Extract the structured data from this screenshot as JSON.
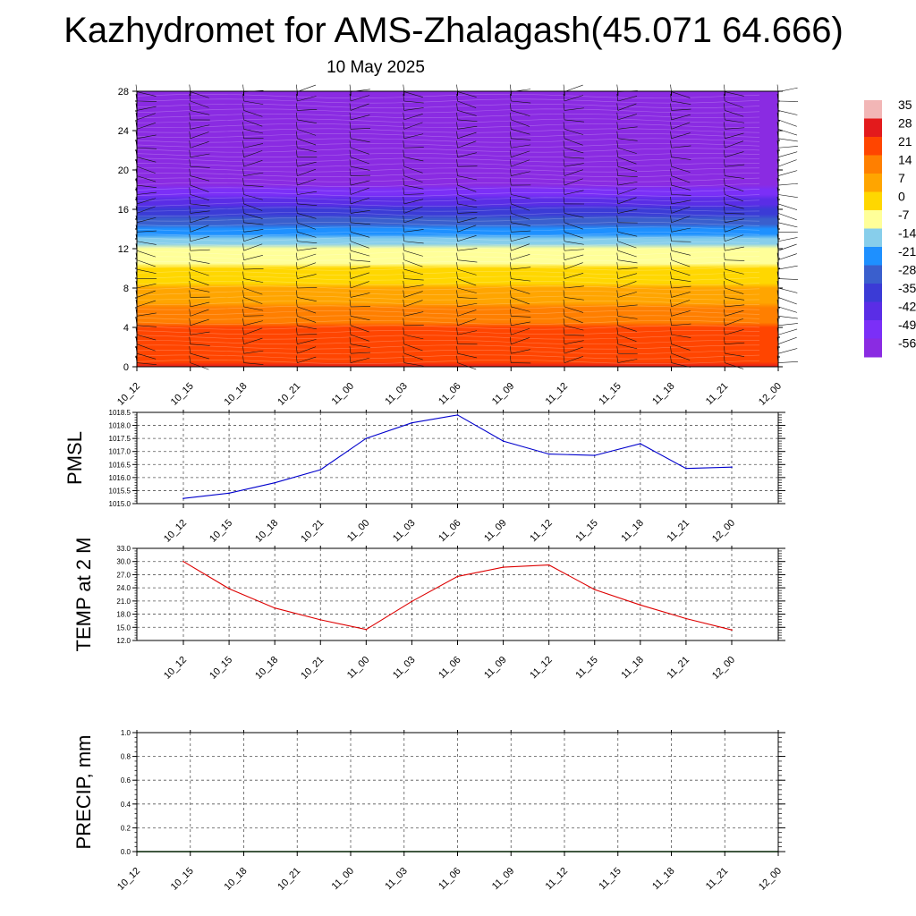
{
  "header": {
    "title": "Kazhydromet for AMS-Zhalagash(45.071 64.666)",
    "subtitle": "10 May 2025"
  },
  "chart_data": [
    {
      "type": "heatmap",
      "name": "temperature-cross-section",
      "ylim": [
        0,
        28
      ],
      "yticks": [
        "0",
        "4",
        "8",
        "12",
        "16",
        "20",
        "24",
        "28"
      ],
      "x_labels": [
        "10_12",
        "10_15",
        "10_18",
        "10_21",
        "11_00",
        "11_03",
        "11_06",
        "11_09",
        "11_12",
        "11_15",
        "11_18",
        "11_21",
        "12_00"
      ],
      "colorbar": {
        "labels": [
          "35",
          "28",
          "21",
          "14",
          "7",
          "0",
          "-7",
          "-14",
          "-21",
          "-28",
          "-35",
          "-42",
          "-49",
          "-56"
        ],
        "colors": [
          "#f2b6b6",
          "#e31a1c",
          "#ff4500",
          "#ff7f00",
          "#ffa500",
          "#ffd700",
          "#ffff99",
          "#87ceeb",
          "#1e90ff",
          "#3a5fcd",
          "#3b3bd6",
          "#5a2de6",
          "#7b2ff7",
          "#8a2be2"
        ]
      },
      "temperature_profile": [
        {
          "level": 0,
          "value": 28
        },
        {
          "level": 4,
          "value": 21
        },
        {
          "level": 6,
          "value": 14
        },
        {
          "level": 9,
          "value": 5
        },
        {
          "level": 12,
          "value": -7
        },
        {
          "level": 13,
          "value": -14
        },
        {
          "level": 15,
          "value": -28
        },
        {
          "level": 18,
          "value": -49
        },
        {
          "level": 22,
          "value": -56
        },
        {
          "level": 28,
          "value": -60
        }
      ],
      "wind_barbs_shown": true
    },
    {
      "type": "line",
      "name": "pmsl",
      "ylabel": "PMSL",
      "ylim": [
        1015.0,
        1018.5
      ],
      "yticks": [
        "1015.0",
        "1015.5",
        "1016.0",
        "1016.5",
        "1017.0",
        "1017.5",
        "1018.0",
        "1018.5"
      ],
      "categories": [
        "10_12",
        "10_15",
        "10_18",
        "10_21",
        "11_00",
        "11_03",
        "11_06",
        "11_09",
        "11_12",
        "11_15",
        "11_18",
        "11_21",
        "12_00"
      ],
      "values": [
        1015.2,
        1015.4,
        1015.8,
        1016.3,
        1017.5,
        1018.1,
        1018.4,
        1017.4,
        1016.9,
        1016.85,
        1017.3,
        1016.35,
        1016.4
      ],
      "color": "#0000cc",
      "grid": true
    },
    {
      "type": "line",
      "name": "temp-2m",
      "ylabel": "TEMP at 2 M",
      "ylim": [
        12.0,
        33.0
      ],
      "yticks": [
        "12.0",
        "15.0",
        "18.0",
        "21.0",
        "24.0",
        "27.0",
        "30.0",
        "33.0"
      ],
      "categories": [
        "10_12",
        "10_15",
        "10_18",
        "10_21",
        "11_00",
        "11_03",
        "11_06",
        "11_09",
        "11_12",
        "11_15",
        "11_18",
        "11_21",
        "12_00"
      ],
      "values": [
        30.0,
        23.8,
        19.4,
        16.7,
        14.5,
        20.9,
        26.6,
        28.7,
        29.2,
        23.6,
        20.1,
        17.0,
        14.4
      ],
      "color": "#dd0000",
      "grid": true
    },
    {
      "type": "line",
      "name": "precip",
      "ylabel": "PRECIP, mm",
      "ylim": [
        0.0,
        1.0
      ],
      "yticks": [
        "0.0",
        "0.2",
        "0.4",
        "0.6",
        "0.8",
        "1.0"
      ],
      "categories": [
        "10_12",
        "10_15",
        "10_18",
        "10_21",
        "11_00",
        "11_03",
        "11_06",
        "11_09",
        "11_12",
        "11_15",
        "11_18",
        "11_21",
        "12_00"
      ],
      "values": [
        0,
        0,
        0,
        0,
        0,
        0,
        0,
        0,
        0,
        0,
        0,
        0,
        0
      ],
      "color": "#006400",
      "grid": true
    }
  ]
}
